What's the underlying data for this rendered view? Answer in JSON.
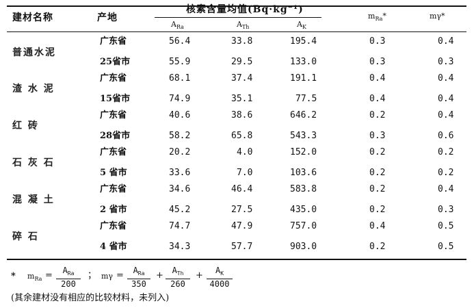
{
  "table": {
    "headers": {
      "material": "建材名称",
      "origin": "产地",
      "group": "核素含量均值(Bq·kg⁻¹)",
      "ara_main": "A",
      "ara_sub": "Ra",
      "ath_main": "A",
      "ath_sub": "Th",
      "ak_main": "A",
      "ak_sub": "K",
      "mra_main": "m",
      "mra_sub": "Ra",
      "mra_star": "*",
      "mg": "mγ*"
    },
    "materials": [
      "普通水泥",
      "渣 水 泥",
      "红    砖",
      "石 灰 石",
      "混 凝 土",
      "碎    石"
    ],
    "rows": [
      {
        "origin": "广东省",
        "ara": "56.4",
        "ath": "33.8",
        "ak": "195.4",
        "mra": "0.3",
        "mg": "0.4"
      },
      {
        "origin": "25省市",
        "ara": "55.9",
        "ath": "29.5",
        "ak": "133.0",
        "mra": "0.3",
        "mg": "0.3"
      },
      {
        "origin": "广东省",
        "ara": "68.1",
        "ath": "37.4",
        "ak": "191.1",
        "mra": "0.4",
        "mg": "0.4"
      },
      {
        "origin": "15省市",
        "ara": "74.9",
        "ath": "35.1",
        "ak": "77.5",
        "mra": "0.4",
        "mg": "0.4"
      },
      {
        "origin": "广东省",
        "ara": "40.6",
        "ath": "38.6",
        "ak": "646.2",
        "mra": "0.2",
        "mg": "0.4"
      },
      {
        "origin": "28省市",
        "ara": "58.2",
        "ath": "65.8",
        "ak": "543.3",
        "mra": "0.3",
        "mg": "0.6"
      },
      {
        "origin": "广东省",
        "ara": "20.2",
        "ath": "4.0",
        "ak": "152.0",
        "mra": "0.2",
        "mg": "0.2"
      },
      {
        "origin": "5 省市",
        "ara": "33.6",
        "ath": "7.0",
        "ak": "103.6",
        "mra": "0.2",
        "mg": "0.2"
      },
      {
        "origin": "广东省",
        "ara": "34.6",
        "ath": "46.4",
        "ak": "583.8",
        "mra": "0.2",
        "mg": "0.4"
      },
      {
        "origin": "2 省市",
        "ara": "45.2",
        "ath": "27.5",
        "ak": "435.0",
        "mra": "0.2",
        "mg": "0.3"
      },
      {
        "origin": "广东省",
        "ara": "74.7",
        "ath": "47.9",
        "ak": "757.0",
        "mra": "0.4",
        "mg": "0.5"
      },
      {
        "origin": "4 省市",
        "ara": "34.3",
        "ath": "57.7",
        "ak": "903.0",
        "mra": "0.2",
        "mg": "0.5"
      }
    ]
  },
  "footnote": {
    "star": "*",
    "mra_lhs": "m",
    "mra_lhs_sub": "Ra",
    "eq": "=",
    "f1_num_main": "A",
    "f1_num_sub": "Ra",
    "f1_den": "200",
    "sep": "；",
    "mg_lhs": "mγ",
    "eq2": "=",
    "f2_num_main": "A",
    "f2_num_sub": "Ra",
    "f2_den": "350",
    "plus1": "+",
    "f3_num_main": "A",
    "f3_num_sub": "Th",
    "f3_den": "260",
    "plus2": "+",
    "f4_num_main": "A",
    "f4_num_sub": "K",
    "f4_den": "4000",
    "note": "(其余建材没有相应的比较材料，未列入)"
  }
}
